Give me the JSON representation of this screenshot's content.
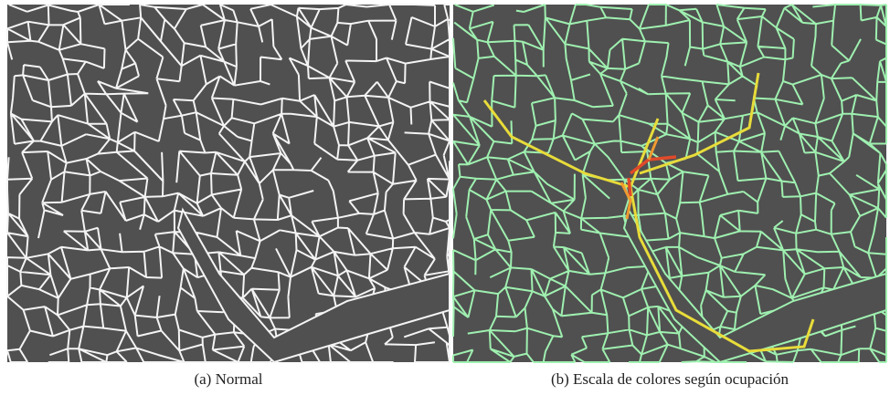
{
  "figure": {
    "panels": [
      {
        "caption": "(a) Normal"
      },
      {
        "caption": "(b) Escala de colores según ocupación"
      }
    ]
  }
}
